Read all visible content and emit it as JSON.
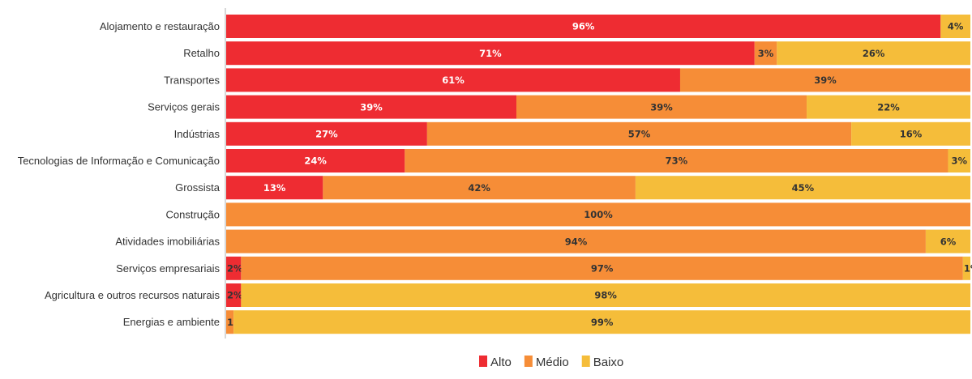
{
  "chart_data": {
    "type": "bar",
    "orientation": "horizontal",
    "stacked": true,
    "stacked_percent": true,
    "title": "",
    "xlabel": "",
    "ylabel": "",
    "xlim": [
      0,
      100
    ],
    "grid": false,
    "legend_position": "bottom-center",
    "categories": [
      "Alojamento e restauração",
      "Retalho",
      "Transportes",
      "Serviços gerais",
      "Indústrias",
      "Tecnologias de Informação e Comunicação",
      "Grossista",
      "Construção",
      "Atividades imobiliárias",
      "Serviços empresariais",
      "Agricultura e outros recursos naturais",
      "Energias e ambiente"
    ],
    "series": [
      {
        "name": "Alto",
        "color": "#ee2c32",
        "values": [
          96,
          71,
          61,
          39,
          27,
          24,
          13,
          0,
          0,
          2,
          2,
          0
        ]
      },
      {
        "name": "Médio",
        "color": "#f68d37",
        "values": [
          0,
          3,
          39,
          39,
          57,
          73,
          42,
          100,
          94,
          97,
          0,
          1
        ]
      },
      {
        "name": "Baixo",
        "color": "#f5bd3a",
        "values": [
          4,
          26,
          0,
          22,
          16,
          3,
          45,
          0,
          6,
          1,
          98,
          99
        ]
      }
    ],
    "data_label_color": "#ffffff",
    "data_label_color_light": "#333333"
  }
}
